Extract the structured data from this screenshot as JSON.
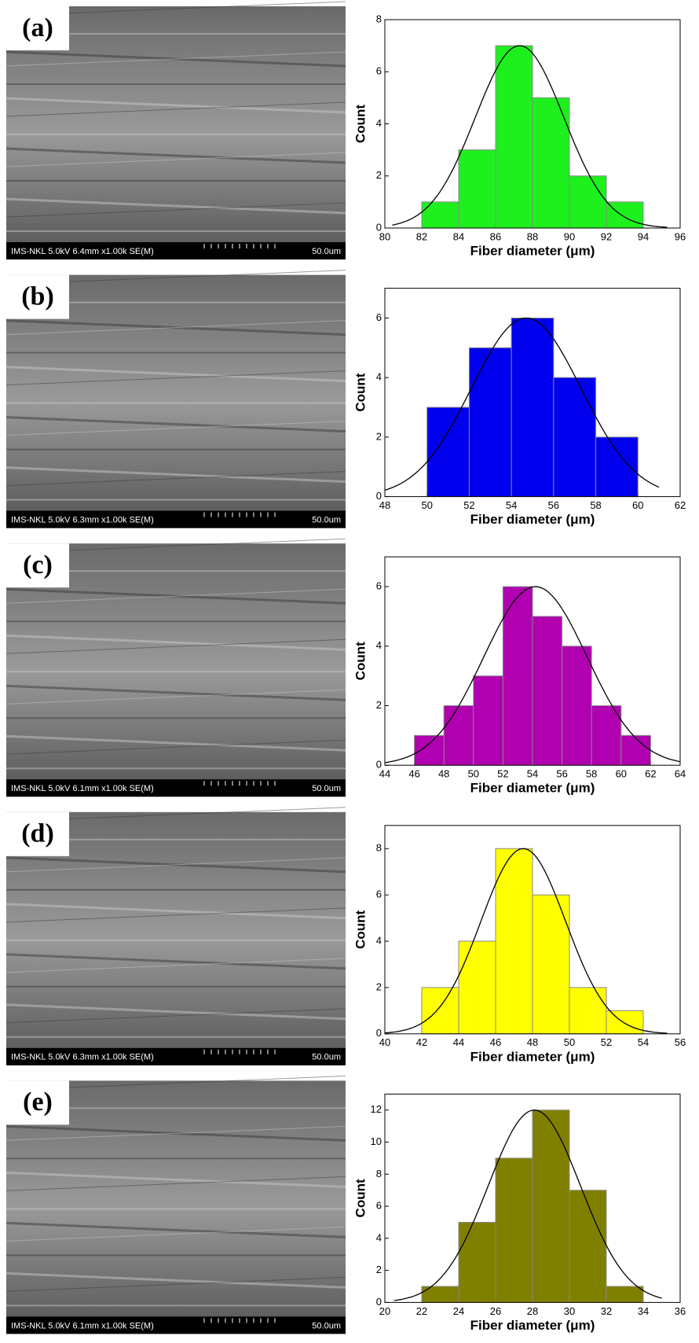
{
  "panels": [
    {
      "label": "(a)",
      "caption": "IMS-NKL 5.0kV 6.4mm x1.00k SE(M)",
      "scale": "50.0um"
    },
    {
      "label": "(b)",
      "caption": "IMS-NKL 5.0kV 6.3mm x1.00k SE(M)",
      "scale": "50.0um"
    },
    {
      "label": "(c)",
      "caption": "IMS-NKL 5.0kV 6.1mm x1.00k SE(M)",
      "scale": "50.0um"
    },
    {
      "label": "(d)",
      "caption": "IMS-NKL 5.0kV 6.3mm x1.00k SE(M)",
      "scale": "50.0um"
    },
    {
      "label": "(e)",
      "caption": "IMS-NKL 5.0kV 6.1mm x1.00k SE(M)",
      "scale": "50.0um"
    }
  ],
  "chart_data": [
    {
      "type": "histogram",
      "x_label": "Fiber diameter (μm)",
      "y_label": "Count",
      "color": "#1ef01e",
      "bins": [
        82,
        84,
        86,
        88,
        90,
        92,
        94
      ],
      "counts": [
        1,
        3,
        7,
        5,
        2,
        1
      ],
      "xlim": [
        80,
        96
      ],
      "xticks": [
        80,
        82,
        84,
        86,
        88,
        90,
        92,
        94,
        96
      ],
      "ylim": [
        0,
        8
      ],
      "yticks": [
        0,
        2,
        4,
        6,
        8
      ],
      "curve": {
        "mean": 87.3,
        "sd": 2.4,
        "peak": 7,
        "range": [
          80.4,
          95.3
        ]
      }
    },
    {
      "type": "histogram",
      "x_label": "Fiber diameter (μm)",
      "y_label": "Count",
      "color": "#0000ee",
      "bins": [
        50,
        52,
        54,
        56,
        58,
        60
      ],
      "counts": [
        3,
        5,
        6,
        4,
        2
      ],
      "xlim": [
        48,
        62
      ],
      "xticks": [
        48,
        50,
        52,
        54,
        56,
        58,
        60,
        62
      ],
      "ylim": [
        0,
        7
      ],
      "yticks": [
        0,
        2,
        4,
        6
      ],
      "curve": {
        "mean": 54.7,
        "sd": 2.6,
        "peak": 6,
        "range": [
          48,
          61
        ]
      }
    },
    {
      "type": "histogram",
      "x_label": "Fiber diameter (μm)",
      "y_label": "Count",
      "color": "#b000b0",
      "bins": [
        46,
        48,
        50,
        52,
        54,
        56,
        58,
        60,
        62
      ],
      "counts": [
        1,
        2,
        3,
        6,
        5,
        4,
        2,
        1
      ],
      "xlim": [
        44,
        64
      ],
      "xticks": [
        44,
        46,
        48,
        50,
        52,
        54,
        56,
        58,
        60,
        62,
        64
      ],
      "ylim": [
        0,
        7
      ],
      "yticks": [
        0,
        2,
        4,
        6
      ],
      "curve": {
        "mean": 54.2,
        "sd": 3.5,
        "peak": 6,
        "range": [
          44,
          64
        ]
      }
    },
    {
      "type": "histogram",
      "x_label": "Fiber diameter (μm)",
      "y_label": "Count",
      "color": "#ffff00",
      "bins": [
        42,
        44,
        46,
        48,
        50,
        52,
        54
      ],
      "counts": [
        2,
        4,
        8,
        6,
        2,
        1
      ],
      "xlim": [
        40,
        56
      ],
      "xticks": [
        40,
        42,
        44,
        46,
        48,
        50,
        52,
        54,
        56
      ],
      "ylim": [
        0,
        9
      ],
      "yticks": [
        0,
        2,
        4,
        6,
        8
      ],
      "curve": {
        "mean": 47.5,
        "sd": 2.3,
        "peak": 8,
        "range": [
          40,
          55.3
        ]
      }
    },
    {
      "type": "histogram",
      "x_label": "Fiber diameter (μm)",
      "y_label": "Count",
      "color": "#808000",
      "bins": [
        22,
        24,
        26,
        28,
        30,
        32,
        34
      ],
      "counts": [
        1,
        5,
        9,
        12,
        7,
        1
      ],
      "xlim": [
        20,
        36
      ],
      "xticks": [
        20,
        22,
        24,
        26,
        28,
        30,
        32,
        34,
        36
      ],
      "ylim": [
        0,
        13
      ],
      "yticks": [
        0,
        2,
        4,
        6,
        8,
        10,
        12
      ],
      "curve": {
        "mean": 28.1,
        "sd": 2.5,
        "peak": 12,
        "range": [
          20.5,
          35
        ]
      }
    }
  ]
}
